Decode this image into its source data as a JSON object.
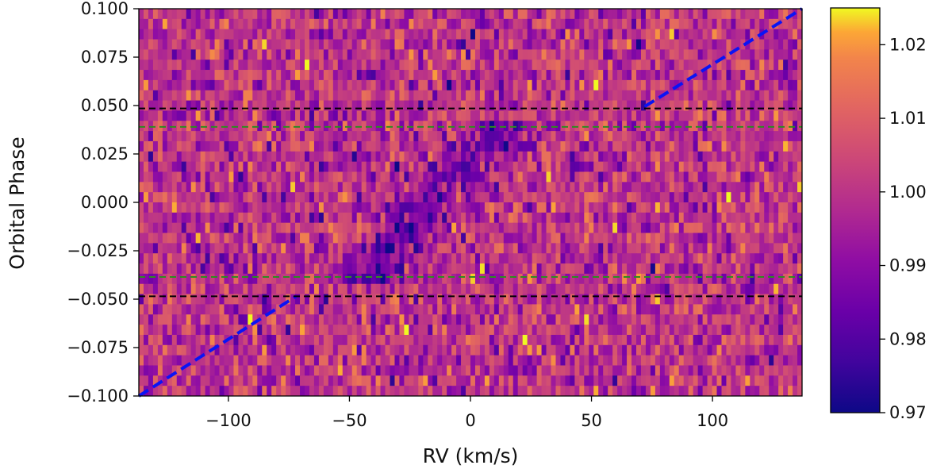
{
  "chart_data": {
    "type": "heatmap",
    "title": "",
    "xlabel": "RV (km/s)",
    "ylabel": "Orbital Phase",
    "xlim": [
      -137,
      137
    ],
    "ylim": [
      -0.1,
      0.1
    ],
    "x_ticks": [
      -100,
      -50,
      0,
      50,
      100
    ],
    "x_tick_labels": [
      "−100",
      "−50",
      "0",
      "50",
      "100"
    ],
    "y_ticks": [
      0.1,
      0.075,
      0.05,
      0.025,
      0.0,
      -0.025,
      -0.05,
      -0.075,
      -0.1
    ],
    "y_tick_labels": [
      "0.100",
      "0.075",
      "0.050",
      "0.025",
      "0.000",
      "−0.025",
      "−0.050",
      "−0.075",
      "−0.100"
    ],
    "colormap": "plasma",
    "color_range": [
      0.97,
      1.025
    ],
    "colorbar_ticks": [
      1.02,
      1.01,
      1.0,
      0.99,
      0.98,
      0.97
    ],
    "colorbar_tick_labels": [
      "1.02",
      "1.01",
      "1.00",
      "0.99",
      "0.98",
      "0.97"
    ],
    "grid": {
      "cols": 140,
      "rows": 38,
      "baseline": 1.0,
      "noise_sigma": 0.0085
    },
    "absorption_trail": {
      "description": "planetary signal: dark diagonal trail inside transit",
      "points": [
        {
          "phase": -0.04,
          "rv": -45
        },
        {
          "phase": 0.04,
          "rv": 15
        }
      ],
      "depth": 0.016
    },
    "reference_lines": [
      {
        "name": "planet-orbit-trail-lower",
        "color": "#0a14f5",
        "style": "dashed",
        "points": [
          [
            -137,
            -0.1
          ],
          [
            -72,
            -0.0485
          ]
        ]
      },
      {
        "name": "planet-orbit-trail-upper",
        "color": "#0a14f5",
        "style": "dashed",
        "points": [
          [
            72,
            0.0495
          ],
          [
            137,
            0.1
          ]
        ]
      },
      {
        "name": "contact-1-4-upper",
        "color": "#000000",
        "style": "dashed",
        "phase": 0.0485
      },
      {
        "name": "contact-2-3-upper",
        "color": "#2e8b1e",
        "style": "dashed",
        "phase": 0.039
      },
      {
        "name": "contact-2-3-lower",
        "color": "#2e8b1e",
        "style": "dashed",
        "phase": -0.0385
      },
      {
        "name": "contact-1-4-lower",
        "color": "#000000",
        "style": "dashed",
        "phase": -0.0485
      }
    ]
  }
}
